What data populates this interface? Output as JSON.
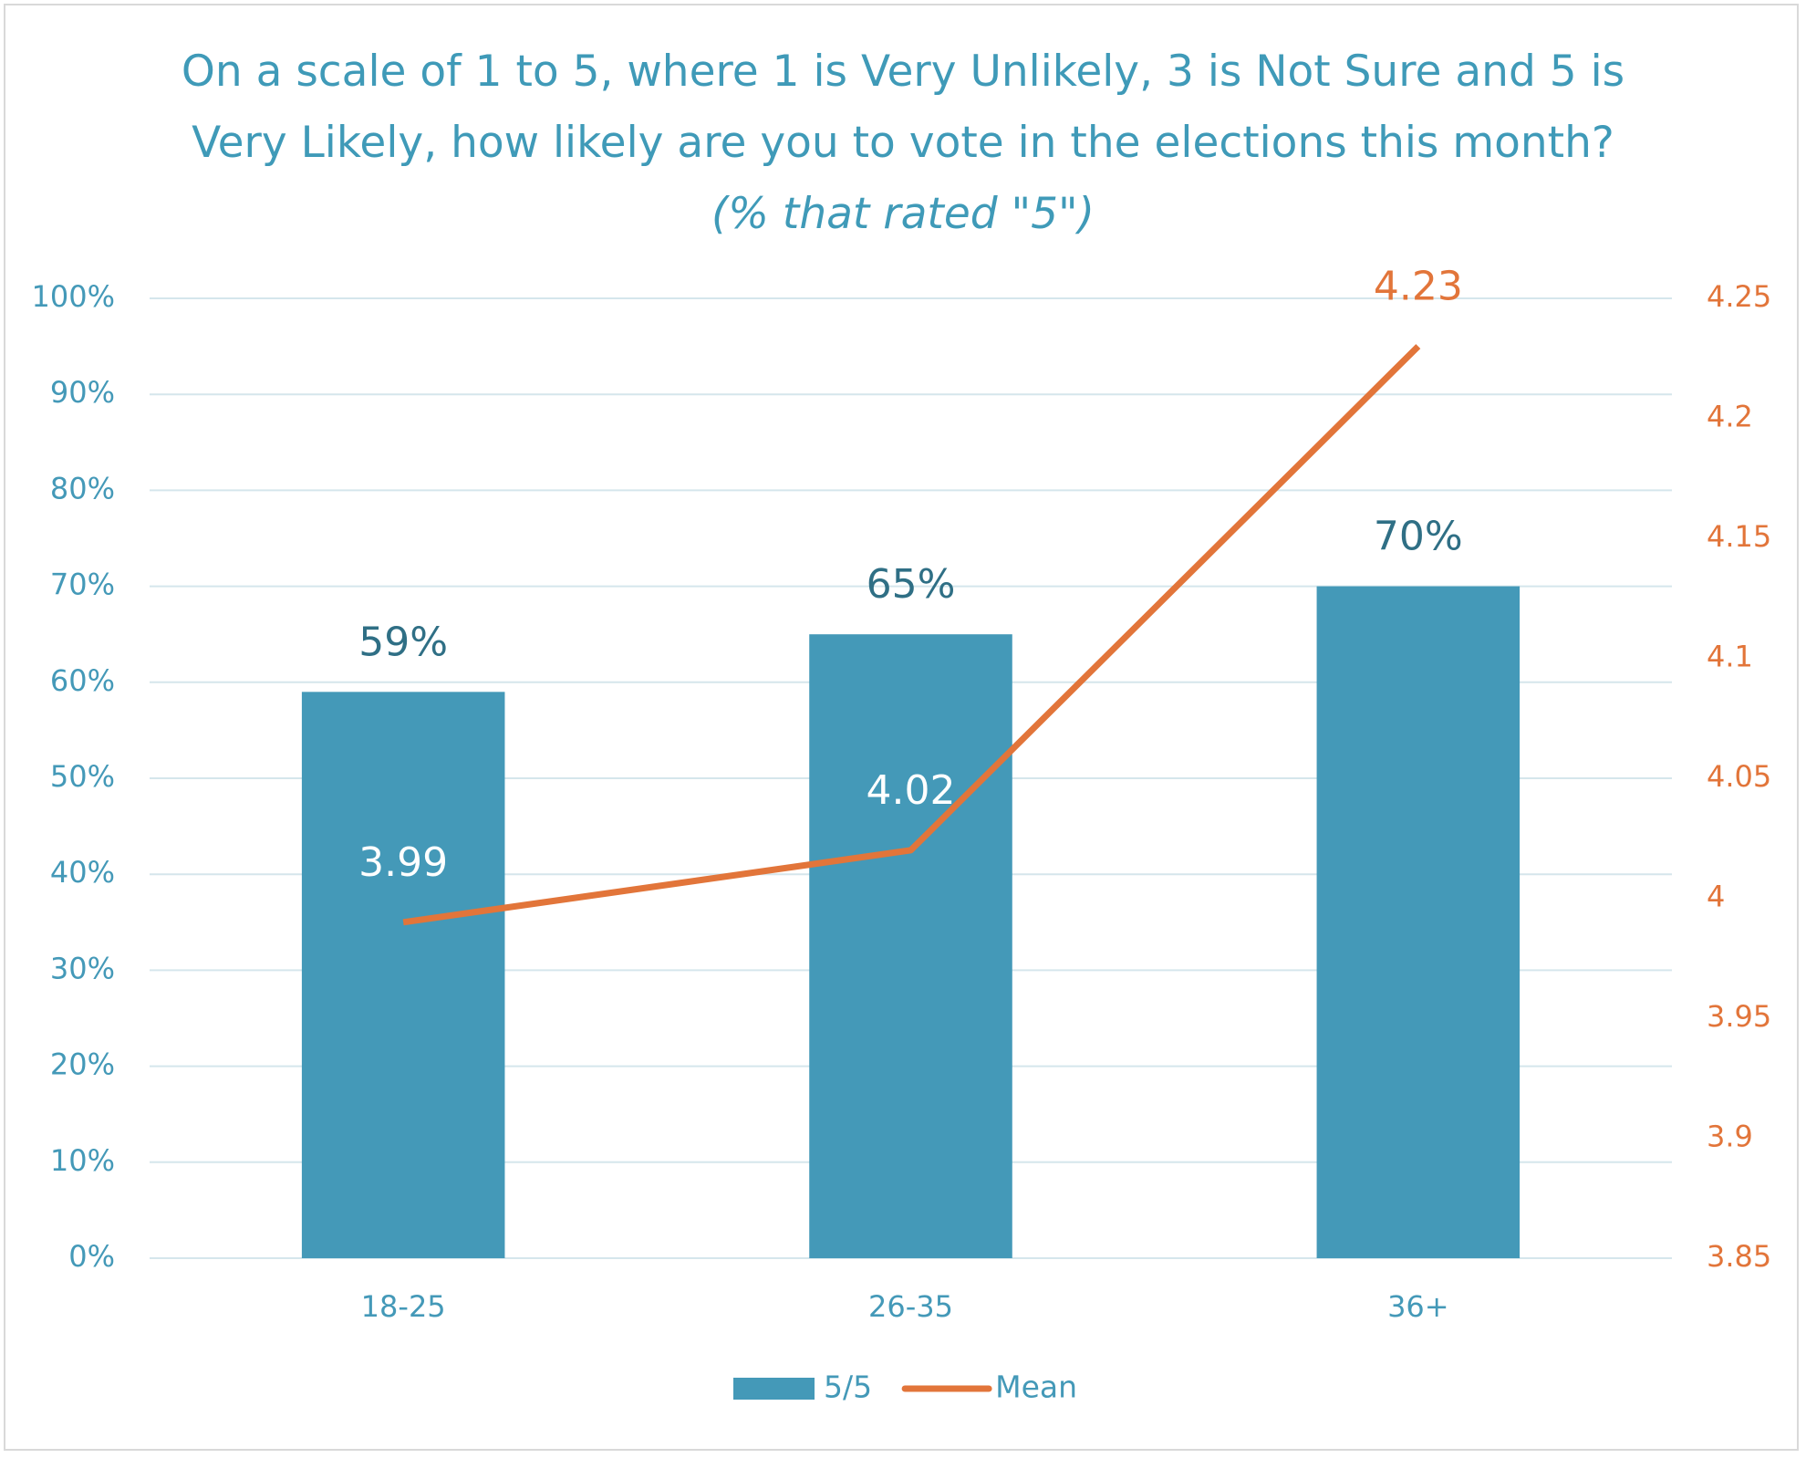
{
  "chart_data": {
    "type": "bar",
    "title": "On a scale of 1 to 5, where 1 is Very Unlikely, 3 is Not Sure and 5 is Very Likely, how likely are you to vote in the elections this month?",
    "title_emphasis": "(% that rated \"5\")",
    "categories": [
      "18-25",
      "26-35",
      "36+"
    ],
    "series": [
      {
        "name": "5/5",
        "type": "bar",
        "color": "#4499b8",
        "values": [
          59,
          65,
          70
        ],
        "value_labels": [
          "59%",
          "65%",
          "70%"
        ]
      },
      {
        "name": "Mean",
        "type": "line",
        "axis": "y2",
        "color": "#e2753a",
        "values": [
          3.99,
          4.02,
          4.23
        ]
      }
    ],
    "ylim": [
      0,
      100
    ],
    "yticks": [
      {
        "value": 0,
        "label": "0%"
      },
      {
        "value": 10,
        "label": "10%"
      },
      {
        "value": 20,
        "label": "20%"
      },
      {
        "value": 30,
        "label": "30%"
      },
      {
        "value": 40,
        "label": "40%"
      },
      {
        "value": 50,
        "label": "50%"
      },
      {
        "value": 60,
        "label": "60%"
      },
      {
        "value": 70,
        "label": "70%"
      },
      {
        "value": 80,
        "label": "80%"
      },
      {
        "value": 90,
        "label": "90%"
      },
      {
        "value": 100,
        "label": "100%"
      }
    ],
    "y2lim": [
      3.85,
      4.25
    ],
    "y2ticks": [
      3.85,
      3.9,
      3.95,
      4,
      4.05,
      4.1,
      4.15,
      4.2,
      4.25
    ],
    "grid": true,
    "legend": "bottom"
  }
}
